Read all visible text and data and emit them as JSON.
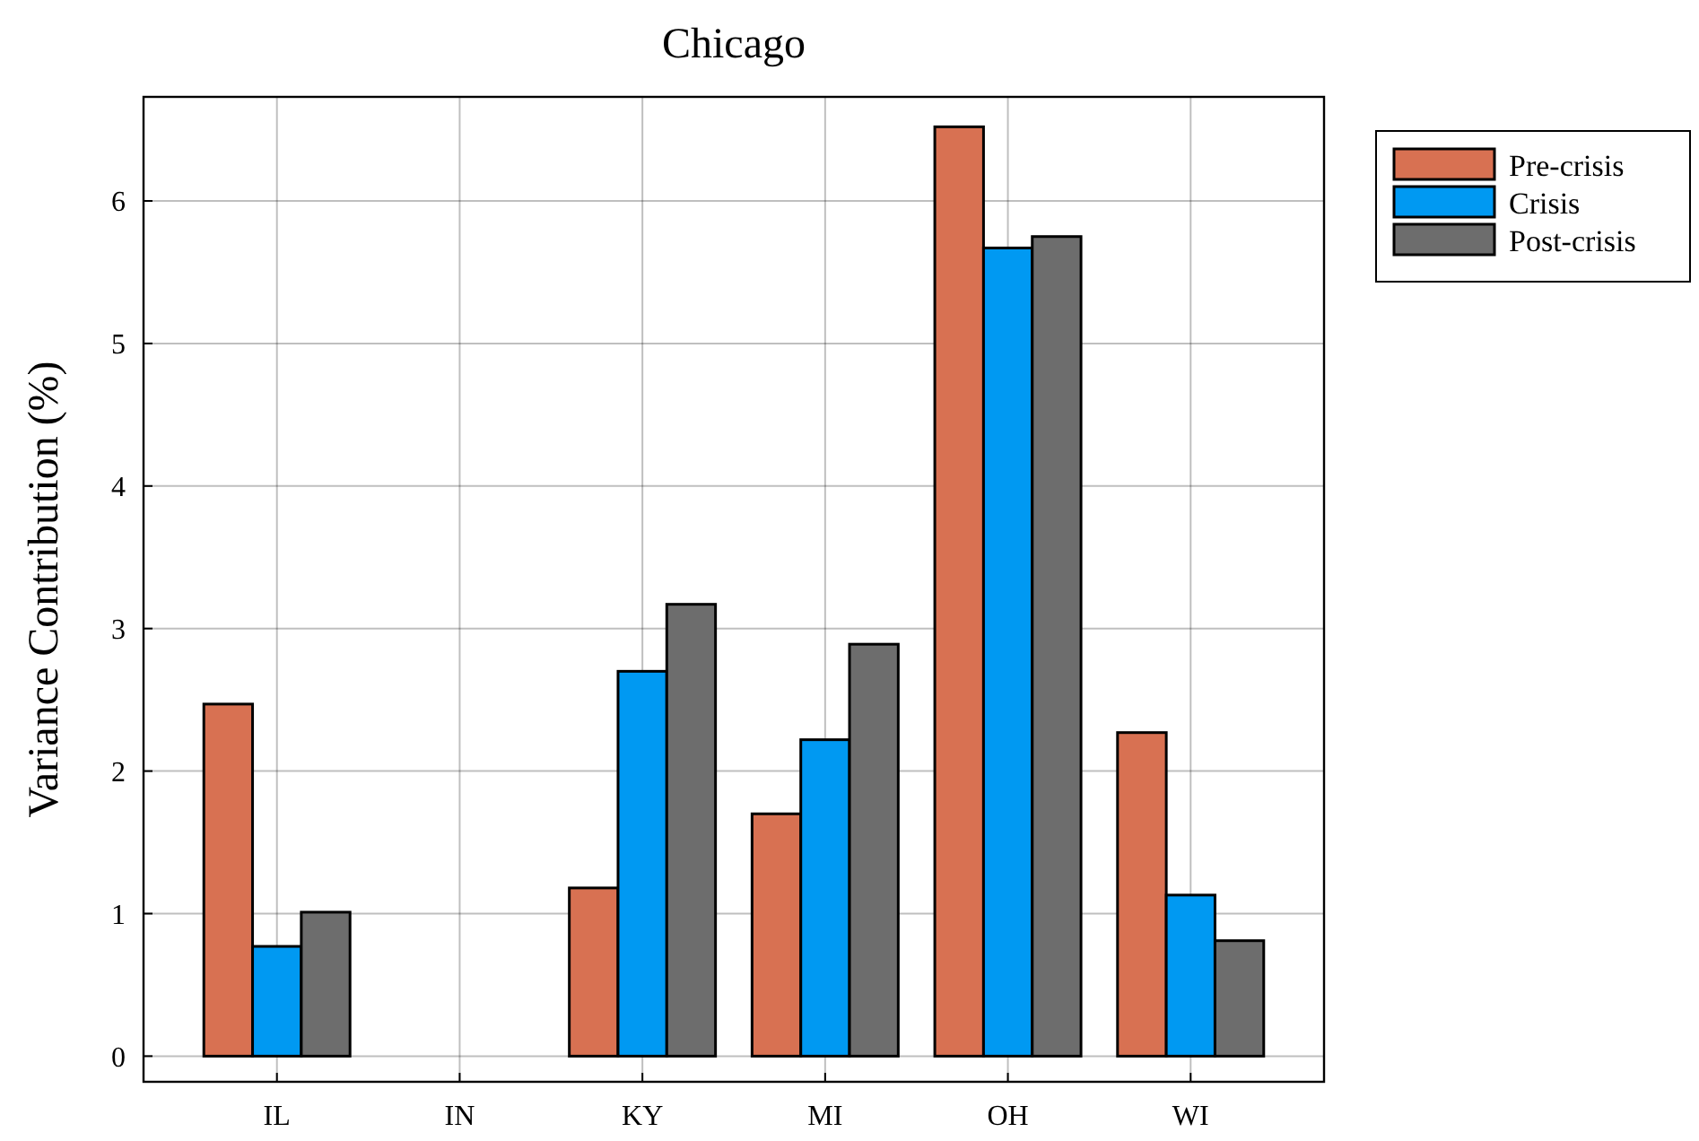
{
  "chart_data": {
    "type": "bar",
    "title": "Chicago",
    "ylabel": "Variance Contribution (%)",
    "categories": [
      "IL",
      "IN",
      "KY",
      "MI",
      "OH",
      "WI"
    ],
    "series": [
      {
        "name": "Pre-crisis",
        "color": "#d87152",
        "values": [
          2.47,
          0,
          1.18,
          1.7,
          6.52,
          2.27
        ]
      },
      {
        "name": "Crisis",
        "color": "#0099f2",
        "values": [
          0.77,
          0,
          2.7,
          2.22,
          5.67,
          1.13
        ]
      },
      {
        "name": "Post-crisis",
        "color": "#6d6d6d",
        "values": [
          1.01,
          0,
          3.17,
          2.89,
          5.75,
          0.81
        ]
      }
    ],
    "ylim": [
      -0.18,
      6.73
    ],
    "yticks": [
      0,
      1,
      2,
      3,
      4,
      5,
      6
    ],
    "grid": true,
    "legend": "top right"
  }
}
